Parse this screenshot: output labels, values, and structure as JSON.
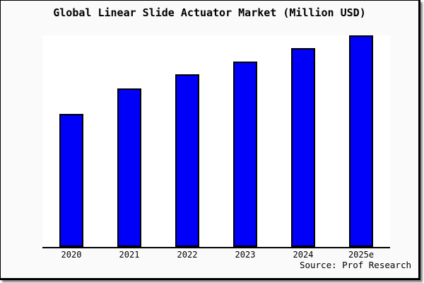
{
  "colors": {
    "window_background": "#fafafa",
    "plot_background": "#ffffff",
    "frame_border": "#000000",
    "axis_line": "#000000",
    "text": "#000000",
    "bar_fill": "#0000f8",
    "bar_border": "#000000"
  },
  "footer": {
    "source_label": "Source: Prof Research"
  },
  "chart_data": {
    "type": "bar",
    "title": "Global Linear Slide Actuator Market (Million USD)",
    "categories": [
      "2020",
      "2021",
      "2022",
      "2023",
      "2024",
      "2025e"
    ],
    "values": [
      62.9,
      74.9,
      81.6,
      87.6,
      94.0,
      100.0
    ],
    "value_note": "y-axis is unlabeled in the chart; values estimated from relative bar heights, normalized so 2025e = 100",
    "xlabel": "",
    "ylabel": "",
    "ylim": [
      0,
      100
    ],
    "grid": false,
    "legend": false,
    "y_axis_visible": false,
    "x_axis_line_visible": true,
    "source": "Source: Prof Research",
    "bar_color": "#0000f8",
    "bar_border_color": "#000000"
  }
}
